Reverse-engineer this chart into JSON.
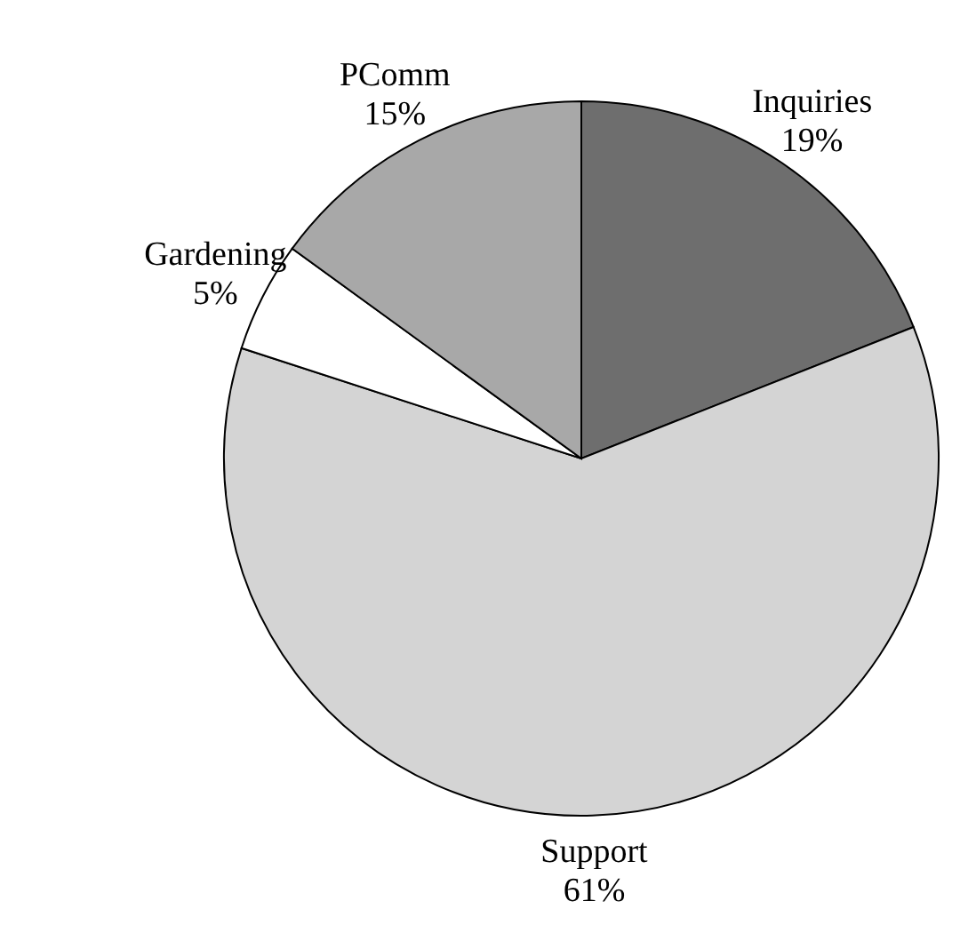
{
  "chart_data": {
    "type": "pie",
    "categories": [
      "Inquiries",
      "Support",
      "Gardening",
      "PComm"
    ],
    "values": [
      19,
      61,
      5,
      15
    ],
    "value_labels": [
      "19%",
      "61%",
      "5%",
      "15%"
    ],
    "colors": [
      "#6e6e6e",
      "#d4d4d4",
      "#ffffff",
      "#a8a8a8"
    ],
    "legend": false
  }
}
